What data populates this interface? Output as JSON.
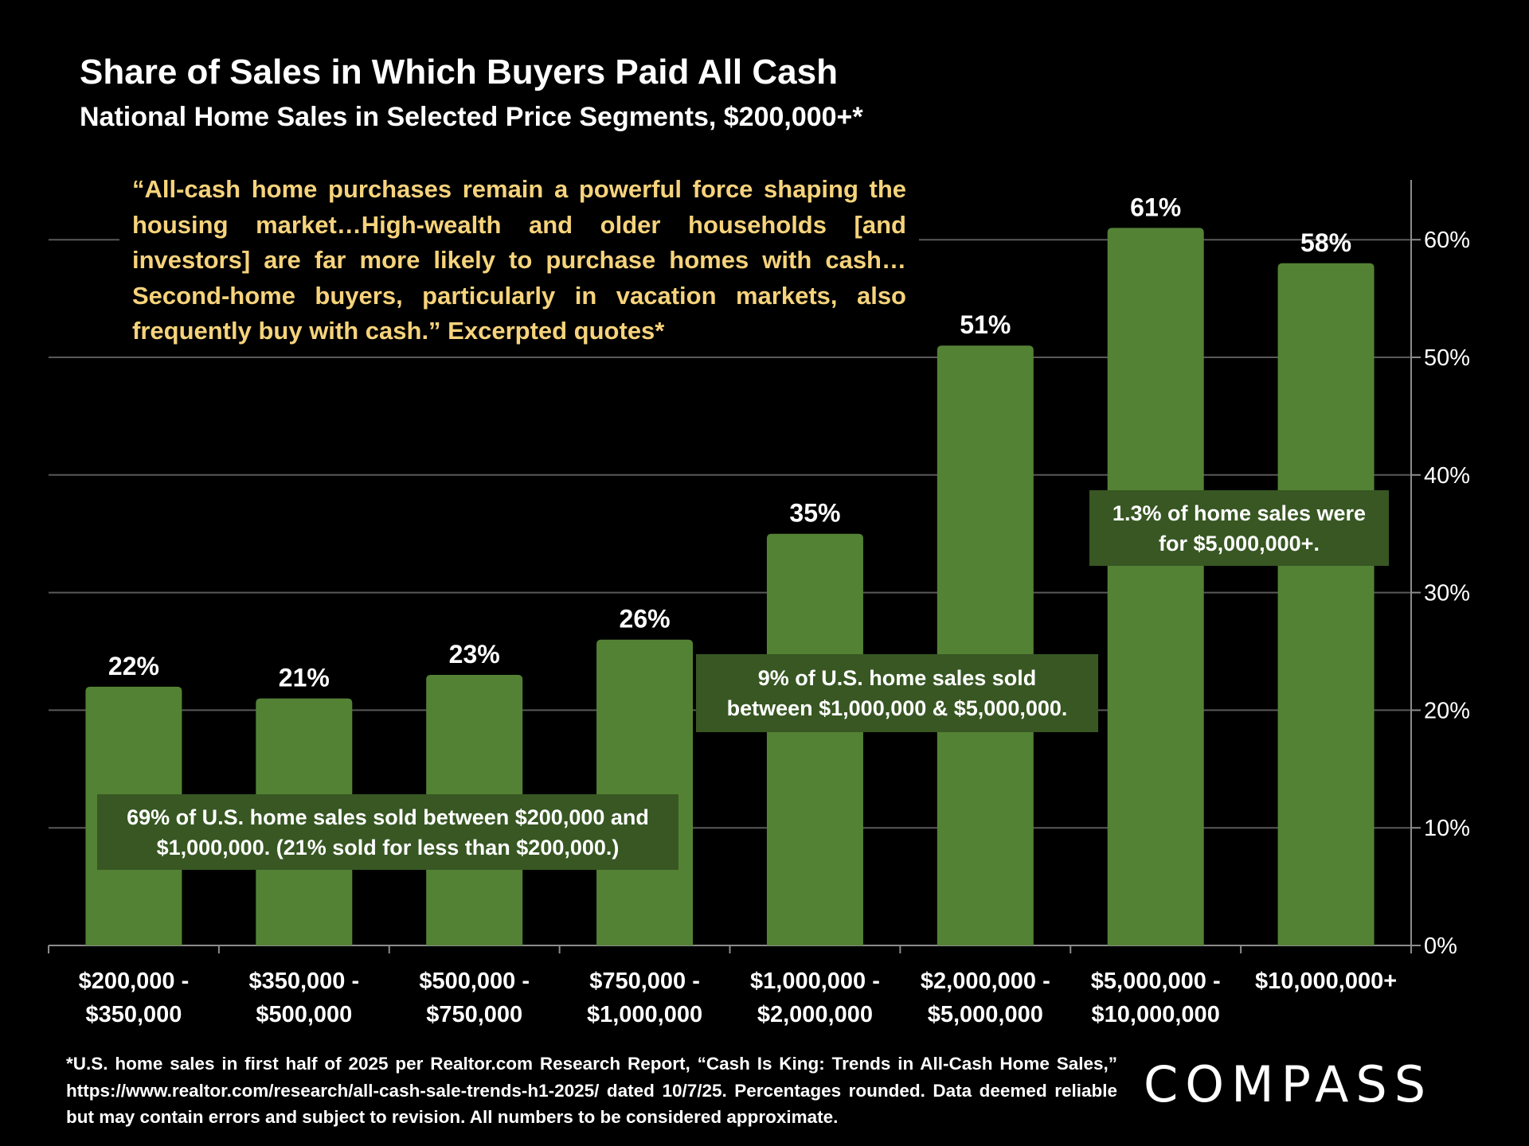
{
  "title": "Share of Sales in Which Buyers Paid All Cash",
  "subtitle": "National Home Sales in Selected Price Segments, $200,000+*",
  "quote": "“All-cash home purchases remain a powerful force shaping the housing market…High-wealth and older households [and investors] are far more likely to purchase homes with cash…Second-home buyers, particularly in vacation markets, also frequently buy with cash.” Excerpted quotes*",
  "annotations": [
    "69% of U.S. home sales sold between $200,000 and $1,000,000. (21% sold for less than $200,000.)",
    "9% of U.S. home sales sold between $1,000,000 & $5,000,000.",
    "1.3% of home sales were for  $5,000,000+."
  ],
  "footer": "*U.S. home sales in first half of 2025 per Realtor.com Research Report, “Cash Is King: Trends in All-Cash Home Sales,” https://www.realtor.com/research/all-cash-sale-trends-h1-2025/ dated 10/7/25. Percentages rounded. Data deemed reliable but may contain errors and subject to revision. All numbers to be considered approximate.",
  "logo": "COMPASS",
  "colors": {
    "bar": "#548235",
    "annotation_bg": "#385723",
    "quote_text": "#f6d37b",
    "background": "#000000"
  },
  "chart_data": {
    "type": "bar",
    "categories": [
      [
        "$200,000 -",
        "$350,000"
      ],
      [
        "$350,000 -",
        "$500,000"
      ],
      [
        "$500,000 -",
        "$750,000"
      ],
      [
        "$750,000 -",
        "$1,000,000"
      ],
      [
        "$1,000,000 -",
        "$2,000,000"
      ],
      [
        "$2,000,000 -",
        "$5,000,000"
      ],
      [
        "$5,000,000 -",
        "$10,000,000"
      ],
      [
        "$10,000,000+"
      ]
    ],
    "values": [
      22,
      21,
      23,
      26,
      35,
      51,
      61,
      58
    ],
    "data_labels": [
      "22%",
      "21%",
      "23%",
      "26%",
      "35%",
      "51%",
      "61%",
      "58%"
    ],
    "ylim": [
      0,
      65
    ],
    "yticks": [
      0,
      10,
      20,
      30,
      40,
      50,
      60
    ],
    "ytick_labels": [
      "0%",
      "10%",
      "20%",
      "30%",
      "40%",
      "50%",
      "60%"
    ],
    "yaxis_side": "right",
    "grid": true
  }
}
